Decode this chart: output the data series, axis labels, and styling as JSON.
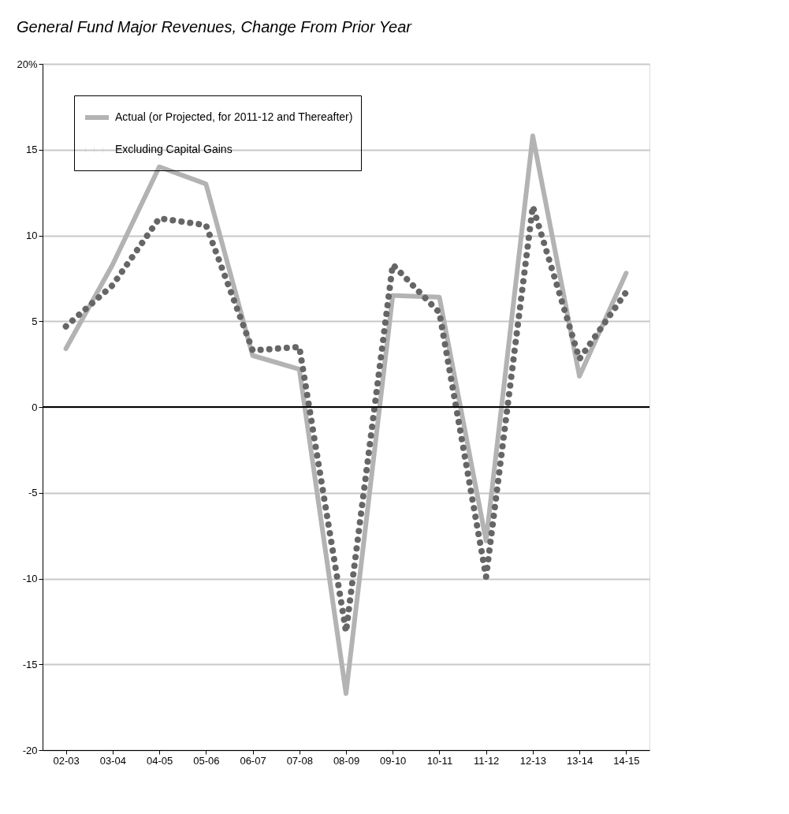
{
  "chart_data": {
    "type": "line",
    "title": "General Fund Major Revenues, Change From Prior Year",
    "categories": [
      "02-03",
      "03-04",
      "04-05",
      "05-06",
      "06-07",
      "07-08",
      "08-09",
      "09-10",
      "10-11",
      "11-12",
      "12-13",
      "13-14",
      "14-15"
    ],
    "series": [
      {
        "name": "Actual (or Projected, for 2011-12 and Thereafter)",
        "color": "#b3b3b3",
        "line_style": "solid",
        "values": [
          3.4,
          8.3,
          14.0,
          13.0,
          3.0,
          2.2,
          -16.7,
          6.5,
          6.4,
          -7.8,
          15.8,
          1.8,
          7.8
        ]
      },
      {
        "name": "Excluding Capital Gains",
        "color": "#666666",
        "line_style": "dotted",
        "values": [
          4.7,
          7.1,
          11.0,
          10.6,
          3.3,
          3.5,
          -13.1,
          8.3,
          5.5,
          -9.9,
          11.7,
          2.8,
          6.7
        ]
      }
    ],
    "ylim": [
      -20,
      20
    ],
    "yticks": [
      -20,
      -15,
      -10,
      -5,
      0,
      5,
      10,
      15,
      {
        "value": 20,
        "label": "20%"
      }
    ],
    "grid": "y",
    "legend": "top left",
    "ref_lines": [
      {
        "axis": "y",
        "value": 0,
        "label": null,
        "color": "#000000"
      }
    ]
  }
}
